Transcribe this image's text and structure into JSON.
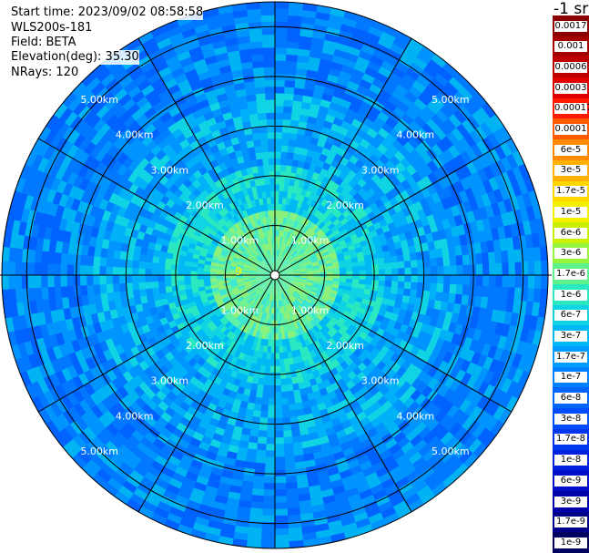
{
  "header": {
    "start_time": "Start time: 2023/09/02 08:58:58",
    "instrument": "WLS200s-181",
    "field": "Field: BETA",
    "elevation": "Elevation(deg): 35.30",
    "nrays": "NRays: 120"
  },
  "colorbar": {
    "unit_label": "-1 sr",
    "segments": [
      {
        "label": "0.0017",
        "color": "#8b0000"
      },
      {
        "label": "0.001",
        "color": "#a40000"
      },
      {
        "label": "0.0006",
        "color": "#c00000"
      },
      {
        "label": "0.0003",
        "color": "#e00000"
      },
      {
        "label": "0.00017",
        "color": "#ff1a00"
      },
      {
        "label": "0.0001",
        "color": "#ff5a00"
      },
      {
        "label": "6e-5",
        "color": "#ff8a00"
      },
      {
        "label": "3e-5",
        "color": "#ffb000"
      },
      {
        "label": "1.7e-5",
        "color": "#ffd600"
      },
      {
        "label": "1e-5",
        "color": "#f4f000"
      },
      {
        "label": "6e-6",
        "color": "#c8f000"
      },
      {
        "label": "3e-6",
        "color": "#96f43c"
      },
      {
        "label": "1.7e-6",
        "color": "#5ef28c"
      },
      {
        "label": "1e-6",
        "color": "#2ae8c0"
      },
      {
        "label": "6e-7",
        "color": "#10d4e4"
      },
      {
        "label": "3e-7",
        "color": "#00b8f4"
      },
      {
        "label": "1.7e-7",
        "color": "#009cff"
      },
      {
        "label": "1e-7",
        "color": "#0080ff"
      },
      {
        "label": "6e-8",
        "color": "#0064ff"
      },
      {
        "label": "3e-8",
        "color": "#004cff"
      },
      {
        "label": "1.7e-8",
        "color": "#0036f0"
      },
      {
        "label": "1e-8",
        "color": "#0020e0"
      },
      {
        "label": "6e-9",
        "color": "#000ec8"
      },
      {
        "label": "3e-9",
        "color": "#0000a8"
      },
      {
        "label": "1.7e-9",
        "color": "#000088"
      },
      {
        "label": "1e-9",
        "color": "#000060"
      }
    ]
  },
  "range_labels": [
    "1.00km",
    "2.00km",
    "3.00km",
    "4.00km",
    "5.00km"
  ],
  "map": {
    "rays": 120,
    "max_range_km": 5.5,
    "ring_ranges_km": [
      1,
      2,
      3,
      4,
      5
    ],
    "spoke_count": 12
  },
  "marker": {
    "label": "9",
    "color": "#ffff00"
  }
}
